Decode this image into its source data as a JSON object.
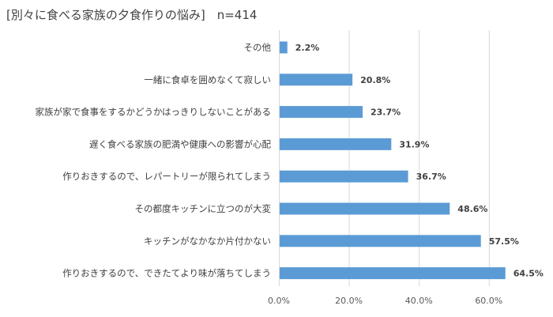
{
  "title": "[別々に食べる家族の夕食作りの悩み]　n=414",
  "colors": {
    "bar": "#5b9bd5",
    "grid": "#d9d9d9",
    "text": "#404040"
  },
  "chart_data": {
    "type": "bar",
    "orientation": "horizontal",
    "title": "[別々に食べる家族の夕食作りの悩み]　n=414",
    "xlabel": "",
    "ylabel": "",
    "xlim": [
      0,
      70
    ],
    "ticks": [
      0,
      20,
      40,
      60
    ],
    "tick_labels": [
      "0.0%",
      "20.0%",
      "40.0%",
      "60.0%"
    ],
    "grid": true,
    "categories": [
      "その他",
      "一緒に食卓を囲めなくて寂しい",
      "家族が家で食事をするかどうかはっきりしないことがある",
      "遅く食べる家族の肥満や健康への影響が心配",
      "作りおきするので、レパートリーが限られてしまう",
      "その都度キッチンに立つのが大変",
      "キッチンがなかなか片付かない",
      "作りおきするので、できたてより味が落ちてしまう"
    ],
    "values": [
      2.2,
      20.8,
      23.7,
      31.9,
      36.7,
      48.6,
      57.5,
      64.5
    ],
    "value_labels": [
      "2.2%",
      "20.8%",
      "23.7%",
      "31.9%",
      "36.7%",
      "48.6%",
      "57.5%",
      "64.5%"
    ]
  }
}
